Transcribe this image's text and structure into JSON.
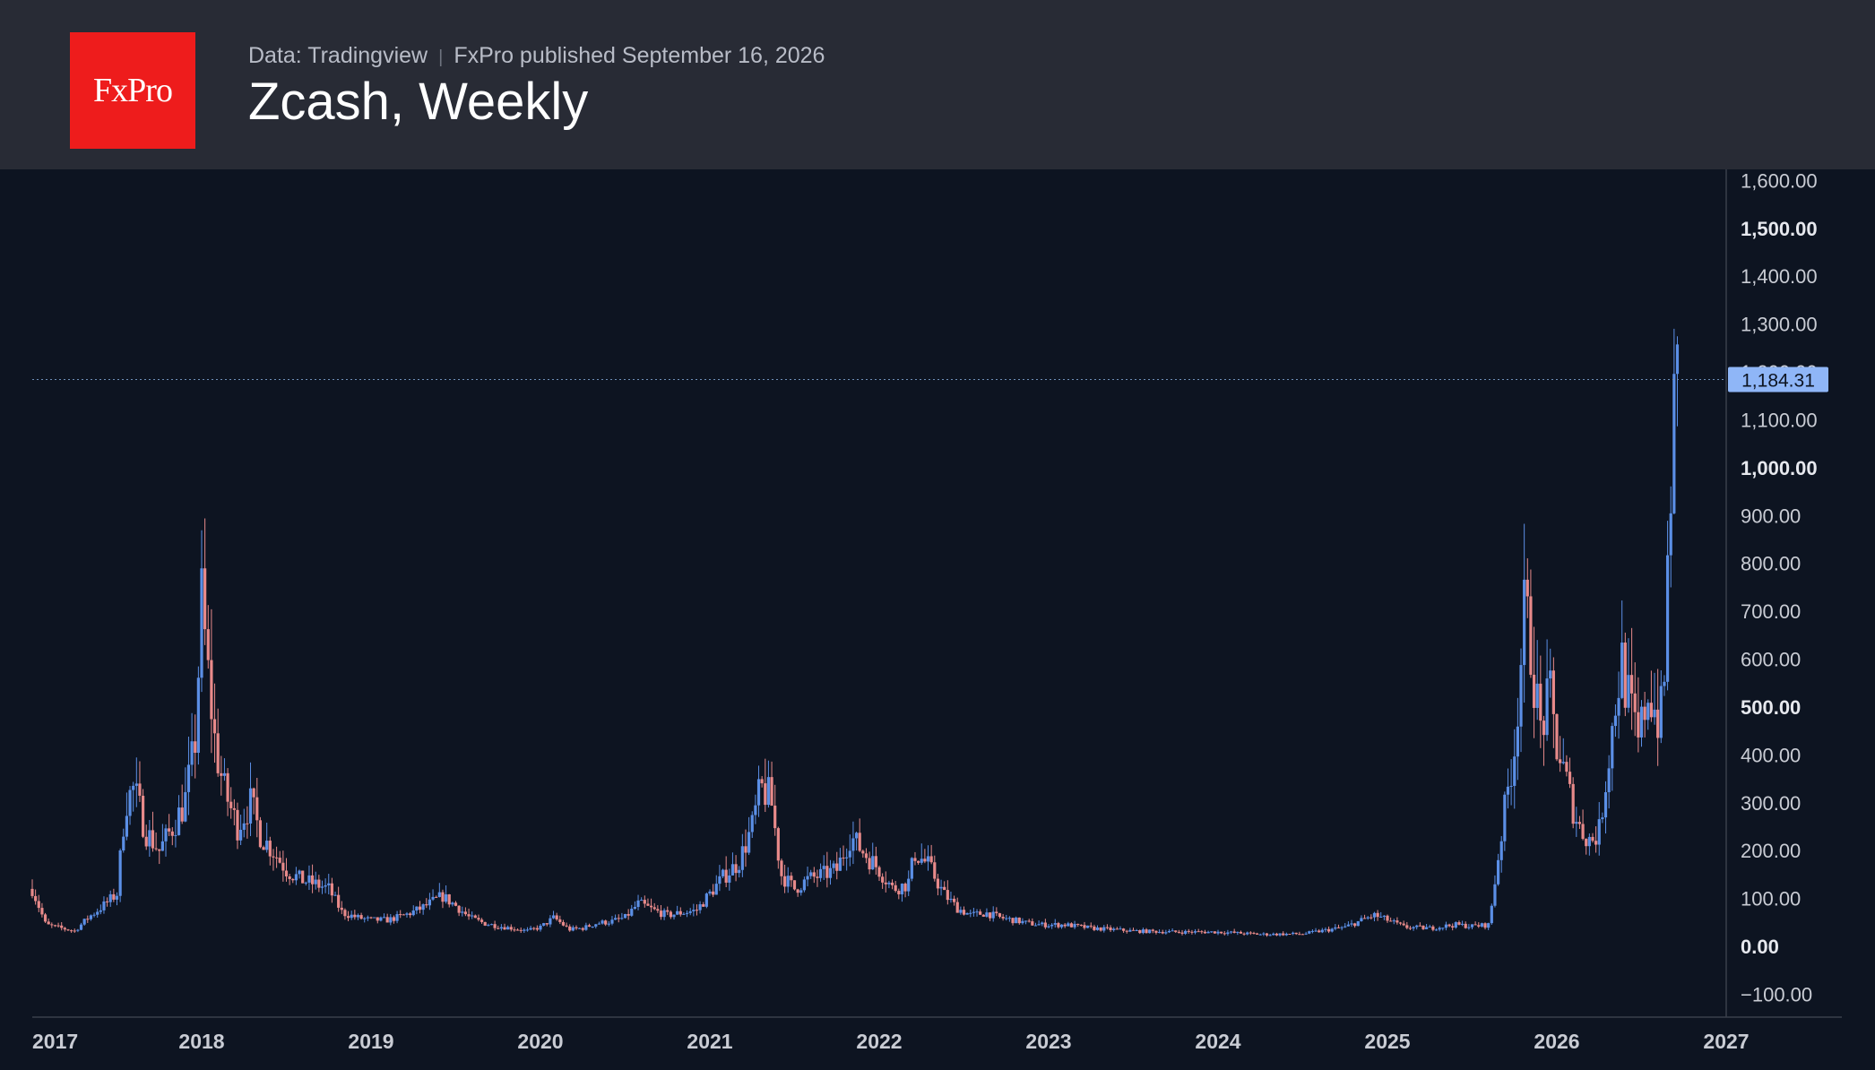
{
  "header": {
    "source": "Data: Tradingview",
    "publisher": "FxPro published September 16, 2026",
    "title": "Zcash, Weekly",
    "logo_text": "FxPro"
  },
  "colors": {
    "background": "#0d1421",
    "header_bg": "#282b35",
    "logo_bg": "#ee1c1c",
    "up": "#5b8fe6",
    "down": "#e88a8a",
    "price_label_bg": "#8fb6f7"
  },
  "chart_data": {
    "type": "candlestick",
    "title": "Zcash, Weekly",
    "x_ticks": [
      "2017",
      "2018",
      "2019",
      "2020",
      "2021",
      "2022",
      "2023",
      "2024",
      "2025",
      "2026",
      "2027"
    ],
    "y_ticks": [
      "1,600.00",
      "1,500.00",
      "1,400.00",
      "1,300.00",
      "1,200.00",
      "1,100.00",
      "1,000.00",
      "900.00",
      "800.00",
      "700.00",
      "600.00",
      "500.00",
      "400.00",
      "300.00",
      "200.00",
      "100.00",
      "0.00",
      "−100.00"
    ],
    "bold_ticks": [
      "1,500.00",
      "1,000.00",
      "500.00",
      "0.00"
    ],
    "ylim": [
      -100,
      1600
    ],
    "xlim": [
      2017.0,
      2027.0
    ],
    "last_price": 1184.31,
    "last_price_label": "1,184.31",
    "series": [
      {
        "name": "Zcash",
        "close": [
          [
            2017.0,
            120
          ],
          [
            2017.08,
            45
          ],
          [
            2017.17,
            38
          ],
          [
            2017.25,
            32
          ],
          [
            2017.33,
            60
          ],
          [
            2017.42,
            85
          ],
          [
            2017.5,
            110
          ],
          [
            2017.55,
            300
          ],
          [
            2017.6,
            330
          ],
          [
            2017.67,
            240
          ],
          [
            2017.75,
            200
          ],
          [
            2017.83,
            250
          ],
          [
            2017.9,
            300
          ],
          [
            2017.96,
            420
          ],
          [
            2018.0,
            720
          ],
          [
            2018.04,
            560
          ],
          [
            2018.08,
            420
          ],
          [
            2018.13,
            330
          ],
          [
            2018.21,
            250
          ],
          [
            2018.29,
            300
          ],
          [
            2018.35,
            230
          ],
          [
            2018.42,
            200
          ],
          [
            2018.5,
            160
          ],
          [
            2018.58,
            140
          ],
          [
            2018.67,
            130
          ],
          [
            2018.75,
            120
          ],
          [
            2018.83,
            70
          ],
          [
            2018.92,
            60
          ],
          [
            2019.0,
            55
          ],
          [
            2019.1,
            55
          ],
          [
            2019.2,
            65
          ],
          [
            2019.3,
            80
          ],
          [
            2019.42,
            105
          ],
          [
            2019.5,
            85
          ],
          [
            2019.58,
            60
          ],
          [
            2019.67,
            48
          ],
          [
            2019.75,
            42
          ],
          [
            2019.83,
            38
          ],
          [
            2019.92,
            32
          ],
          [
            2020.0,
            40
          ],
          [
            2020.08,
            60
          ],
          [
            2020.17,
            35
          ],
          [
            2020.25,
            38
          ],
          [
            2020.33,
            48
          ],
          [
            2020.42,
            52
          ],
          [
            2020.5,
            60
          ],
          [
            2020.58,
            90
          ],
          [
            2020.67,
            75
          ],
          [
            2020.75,
            65
          ],
          [
            2020.83,
            70
          ],
          [
            2020.92,
            75
          ],
          [
            2021.0,
            110
          ],
          [
            2021.08,
            145
          ],
          [
            2021.17,
            175
          ],
          [
            2021.25,
            250
          ],
          [
            2021.3,
            330
          ],
          [
            2021.36,
            310
          ],
          [
            2021.42,
            150
          ],
          [
            2021.5,
            120
          ],
          [
            2021.58,
            140
          ],
          [
            2021.67,
            150
          ],
          [
            2021.75,
            160
          ],
          [
            2021.83,
            230
          ],
          [
            2021.9,
            200
          ],
          [
            2022.0,
            160
          ],
          [
            2022.08,
            120
          ],
          [
            2022.17,
            130
          ],
          [
            2022.21,
            195
          ],
          [
            2022.29,
            170
          ],
          [
            2022.38,
            110
          ],
          [
            2022.46,
            80
          ],
          [
            2022.54,
            65
          ],
          [
            2022.63,
            70
          ],
          [
            2022.71,
            60
          ],
          [
            2022.79,
            55
          ],
          [
            2022.88,
            48
          ],
          [
            2022.96,
            45
          ],
          [
            2023.1,
            45
          ],
          [
            2023.25,
            38
          ],
          [
            2023.5,
            32
          ],
          [
            2023.75,
            30
          ],
          [
            2024.0,
            30
          ],
          [
            2024.25,
            25
          ],
          [
            2024.5,
            26
          ],
          [
            2024.75,
            40
          ],
          [
            2024.92,
            65
          ],
          [
            2025.0,
            55
          ],
          [
            2025.1,
            40
          ],
          [
            2025.25,
            38
          ],
          [
            2025.4,
            45
          ],
          [
            2025.5,
            42
          ],
          [
            2025.6,
            45
          ],
          [
            2025.67,
            230
          ],
          [
            2025.75,
            420
          ],
          [
            2025.81,
            700
          ],
          [
            2025.85,
            620
          ],
          [
            2025.9,
            450
          ],
          [
            2025.96,
            520
          ],
          [
            2026.0,
            420
          ],
          [
            2026.08,
            310
          ],
          [
            2026.13,
            250
          ],
          [
            2026.2,
            220
          ],
          [
            2026.25,
            240
          ],
          [
            2026.3,
            380
          ],
          [
            2026.38,
            600
          ],
          [
            2026.42,
            520
          ],
          [
            2026.48,
            420
          ],
          [
            2026.54,
            540
          ],
          [
            2026.6,
            470
          ],
          [
            2026.63,
            500
          ],
          [
            2026.66,
            860
          ],
          [
            2026.7,
            1170
          ],
          [
            2026.72,
            1184.31
          ]
        ]
      }
    ]
  }
}
